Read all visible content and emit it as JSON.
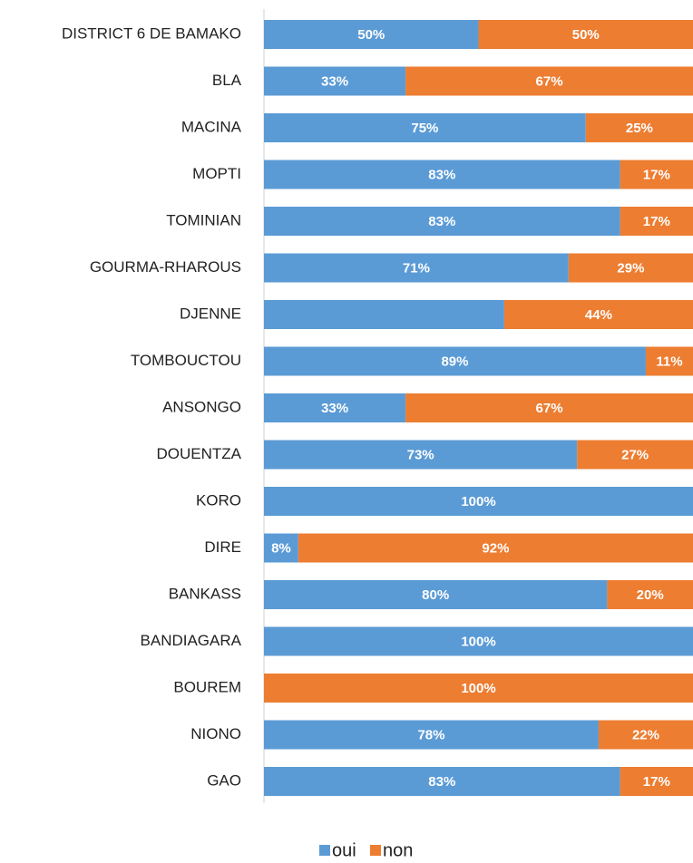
{
  "chart_data": {
    "type": "stacked-bar-horizontal",
    "categories": [
      "DISTRICT 6 DE BAMAKO",
      "BLA",
      "MACINA",
      "MOPTI",
      "TOMINIAN",
      "GOURMA-RHAROUS",
      "DJENNE",
      "TOMBOUCTOU",
      "ANSONGO",
      "DOUENTZA",
      "KORO",
      "DIRE",
      "BANKASS",
      "BANDIAGARA",
      "BOUREM",
      "NIONO",
      "GAO"
    ],
    "series": [
      {
        "name": "oui",
        "color": "#5b9bd5",
        "values": [
          50,
          33,
          75,
          83,
          83,
          71,
          56,
          89,
          33,
          73,
          100,
          8,
          80,
          100,
          0,
          78,
          83
        ],
        "value_labels": [
          "50%",
          "33%",
          "75%",
          "83%",
          "83%",
          "71%",
          null,
          "89%",
          "33%",
          "73%",
          "100%",
          "8%",
          "80%",
          "100%",
          null,
          "78%",
          "83%"
        ]
      },
      {
        "name": "non",
        "color": "#ed7d31",
        "values": [
          50,
          67,
          25,
          17,
          17,
          29,
          44,
          11,
          67,
          27,
          0,
          92,
          20,
          0,
          100,
          22,
          17
        ],
        "value_labels": [
          "50%",
          "67%",
          "25%",
          "17%",
          "17%",
          "29%",
          "44%",
          "11%",
          "67%",
          "27%",
          null,
          "92%",
          "20%",
          null,
          "100%",
          "22%",
          "17%"
        ]
      }
    ],
    "xlim": [
      0,
      100
    ],
    "legend": "bottom"
  }
}
